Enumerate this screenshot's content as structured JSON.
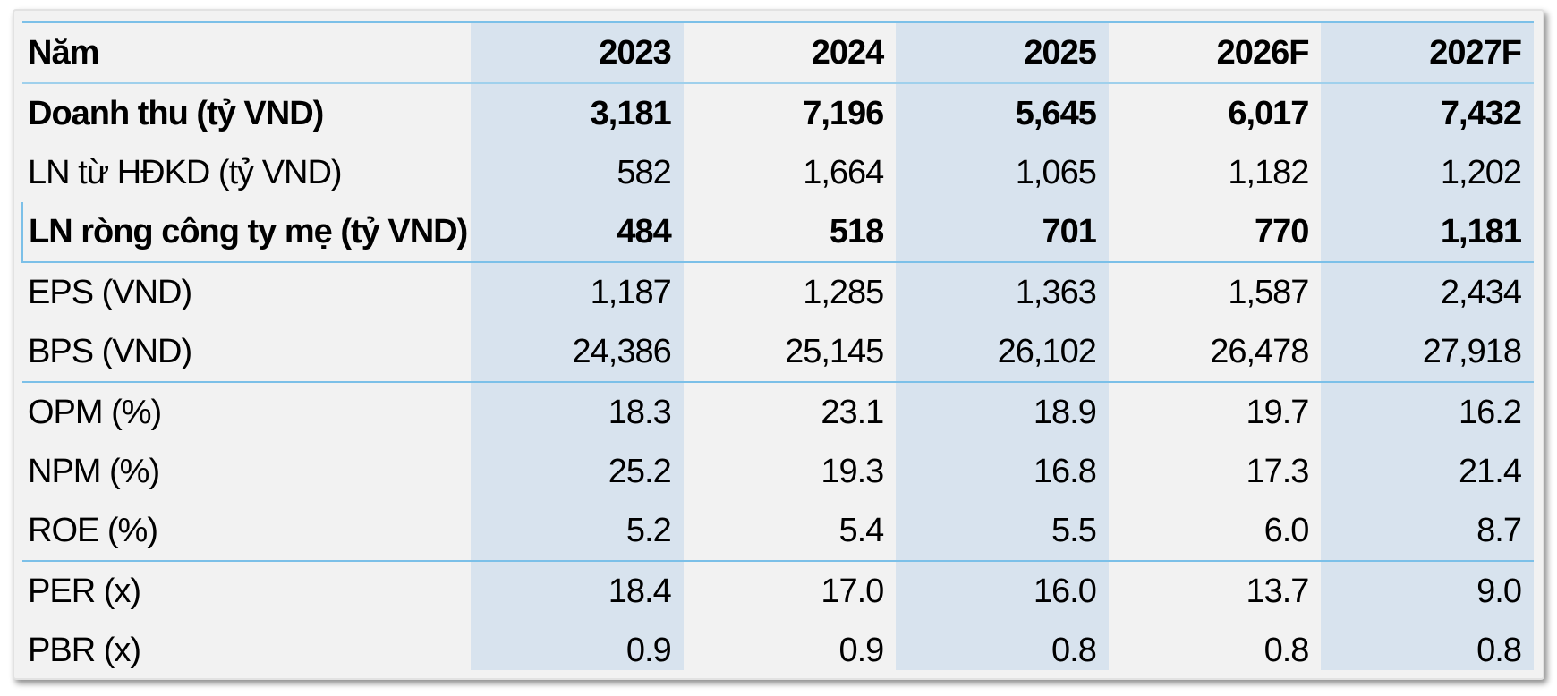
{
  "table": {
    "header": {
      "label": "Năm",
      "years": [
        "2023",
        "2024",
        "2025",
        "2026F",
        "2027F"
      ]
    },
    "rows": [
      {
        "label": "Doanh thu (tỷ VND)",
        "values": [
          "3,181",
          "7,196",
          "5,645",
          "6,017",
          "7,432"
        ],
        "bold": true
      },
      {
        "label": "LN từ HĐKD (tỷ VND)",
        "values": [
          "582",
          "1,664",
          "1,065",
          "1,182",
          "1,202"
        ],
        "bold": false
      },
      {
        "label": "LN ròng công ty mẹ (tỷ VND)",
        "values": [
          "484",
          "518",
          "701",
          "770",
          "1,181"
        ],
        "bold": true
      },
      {
        "label": "EPS (VND)",
        "values": [
          "1,187",
          "1,285",
          "1,363",
          "1,587",
          "2,434"
        ],
        "bold": false
      },
      {
        "label": "BPS (VND)",
        "values": [
          "24,386",
          "25,145",
          "26,102",
          "26,478",
          "27,918"
        ],
        "bold": false
      },
      {
        "label": "OPM (%)",
        "values": [
          "18.3",
          "23.1",
          "18.9",
          "19.7",
          "16.2"
        ],
        "bold": false
      },
      {
        "label": "NPM (%)",
        "values": [
          "25.2",
          "19.3",
          "16.8",
          "17.3",
          "21.4"
        ],
        "bold": false
      },
      {
        "label": "ROE (%)",
        "values": [
          "5.2",
          "5.4",
          "5.5",
          "6.0",
          "8.7"
        ],
        "bold": false
      },
      {
        "label": "PER (x)",
        "values": [
          "18.4",
          "17.0",
          "16.0",
          "13.7",
          "9.0"
        ],
        "bold": false
      },
      {
        "label": "PBR (x)",
        "values": [
          "0.9",
          "0.9",
          "0.8",
          "0.8",
          "0.8"
        ],
        "bold": false
      }
    ]
  },
  "colors": {
    "shaded_column": "#d8e3ee",
    "rule": "#7cc0e8",
    "bottom_rule": "#2b6bb0",
    "panel_background": "#f2f2f2"
  }
}
